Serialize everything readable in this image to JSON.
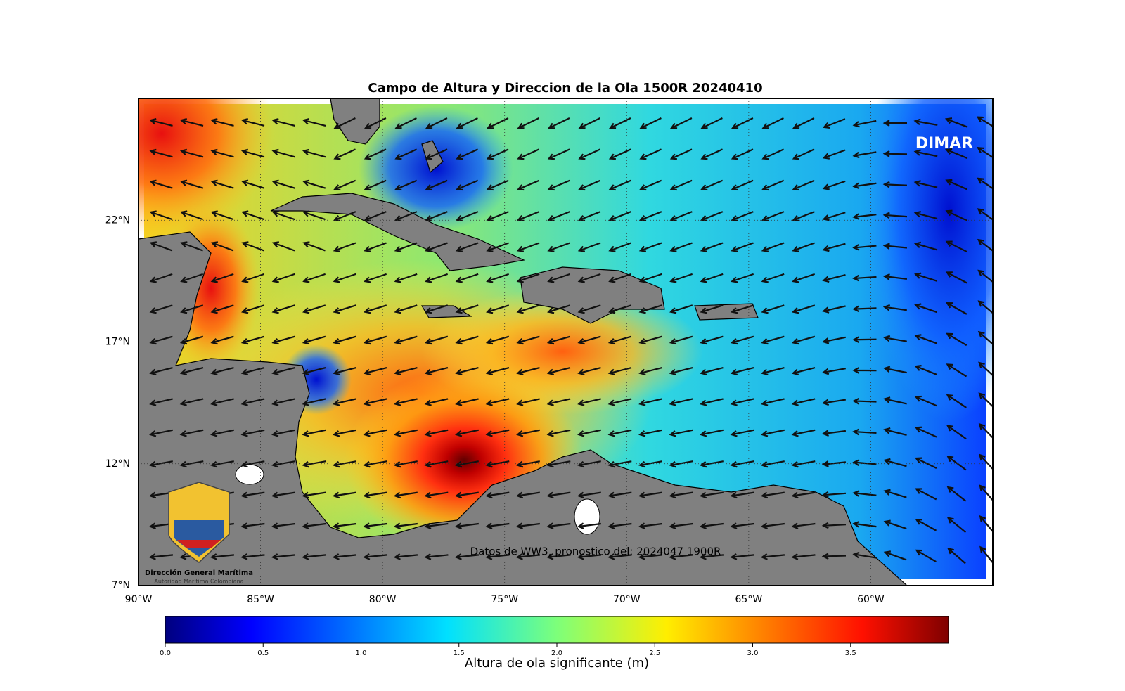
{
  "map": {
    "title": "Campo de Altura y Direccion de la Ola 1500R 20240410",
    "watermark": "DIMAR",
    "annotation": "Datos de WW3, pronostico del: 2024047 1900R",
    "logo": {
      "line1": "Dirección General Marítima",
      "line2": "Autoridad Marítima Colombiana"
    },
    "xlim": [
      -90,
      -55
    ],
    "ylim": [
      7,
      27
    ],
    "xticks": [
      {
        "value": -90,
        "label": "90°W"
      },
      {
        "value": -85,
        "label": "85°W"
      },
      {
        "value": -80,
        "label": "80°W"
      },
      {
        "value": -75,
        "label": "75°W"
      },
      {
        "value": -70,
        "label": "70°W"
      },
      {
        "value": -65,
        "label": "65°W"
      },
      {
        "value": -60,
        "label": "60°W"
      }
    ],
    "yticks": [
      {
        "value": 7,
        "label": "7°N"
      },
      {
        "value": 12,
        "label": "12°N"
      },
      {
        "value": 17,
        "label": "17°N"
      },
      {
        "value": 22,
        "label": "22°N"
      }
    ],
    "colorbar": {
      "label": "Altura de ola significante (m)",
      "lim": [
        0,
        4
      ],
      "ticks": [
        {
          "value": 0,
          "label": "0.0"
        },
        0.5,
        {
          "value": 1,
          "label": "1.0"
        },
        1.5,
        {
          "value": 2,
          "label": "2.0"
        },
        2.5,
        {
          "value": 3,
          "label": "3.0"
        },
        3.5
      ]
    }
  }
}
